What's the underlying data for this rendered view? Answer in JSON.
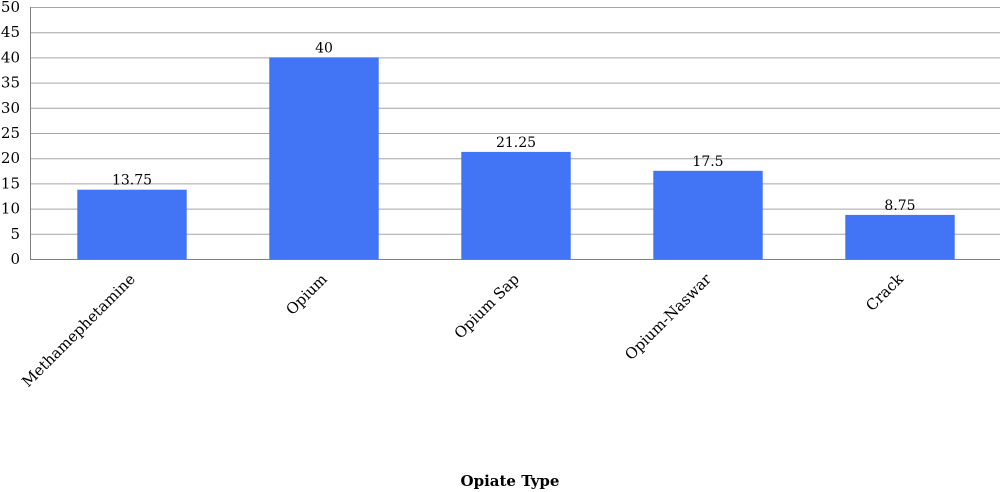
{
  "chart_data": {
    "type": "bar",
    "categories": [
      "Methamephetamine",
      "Opium",
      "Opium Sap",
      "Opium-Naswar",
      "Crack"
    ],
    "values": [
      13.75,
      40,
      21.25,
      17.5,
      8.75
    ],
    "data_labels": [
      "13.75",
      "40",
      "21.25",
      "17.5",
      "8.75"
    ],
    "title": "",
    "xlabel": "Opiate Type",
    "ylabel": "",
    "ylim": [
      0,
      50
    ],
    "yticks": [
      0,
      5,
      10,
      15,
      20,
      25,
      30,
      35,
      40,
      45,
      50
    ],
    "grid": true,
    "legend": "none",
    "bar_color": "#4175f5"
  }
}
